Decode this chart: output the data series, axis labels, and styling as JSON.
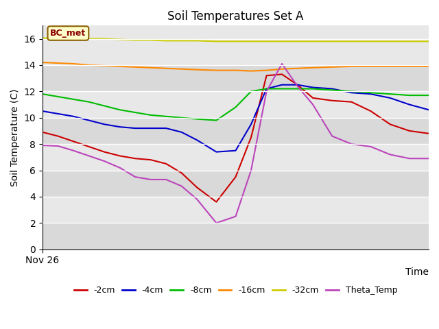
{
  "title": "Soil Temperatures Set A",
  "xlabel": "Time",
  "ylabel": "Soil Temperature (C)",
  "ylim": [
    0,
    17
  ],
  "yticks": [
    0,
    2,
    4,
    6,
    8,
    10,
    12,
    14,
    16
  ],
  "x_label_text": "Nov 26",
  "annotation_text": "BC_met",
  "background_color": "#ffffff",
  "plot_bg_color": "#e8e8e8",
  "band_color": "#d8d8d8",
  "series": {
    "neg2cm": {
      "color": "#cc0000",
      "label": "-2cm",
      "x": [
        0,
        4,
        8,
        12,
        16,
        20,
        24,
        28,
        32,
        36,
        40,
        45,
        50,
        54,
        58,
        62,
        66,
        70,
        75,
        80,
        85,
        90,
        95,
        100
      ],
      "y": [
        8.9,
        8.6,
        8.2,
        7.8,
        7.4,
        7.1,
        6.9,
        6.8,
        6.5,
        5.8,
        4.7,
        3.6,
        5.5,
        8.5,
        13.2,
        13.3,
        12.5,
        11.5,
        11.3,
        11.2,
        10.5,
        9.5,
        9.0,
        8.8
      ]
    },
    "neg4cm": {
      "color": "#0000cc",
      "label": "-4cm",
      "x": [
        0,
        4,
        8,
        12,
        16,
        20,
        24,
        28,
        32,
        36,
        40,
        45,
        50,
        54,
        58,
        62,
        66,
        70,
        75,
        80,
        85,
        90,
        95,
        100
      ],
      "y": [
        10.5,
        10.3,
        10.1,
        9.8,
        9.5,
        9.3,
        9.2,
        9.2,
        9.2,
        8.9,
        8.3,
        7.4,
        7.5,
        9.5,
        12.2,
        12.5,
        12.5,
        12.3,
        12.2,
        11.9,
        11.8,
        11.5,
        11.0,
        10.6
      ]
    },
    "neg8cm": {
      "color": "#00bb00",
      "label": "-8cm",
      "x": [
        0,
        4,
        8,
        12,
        16,
        20,
        24,
        28,
        32,
        36,
        40,
        45,
        50,
        54,
        58,
        62,
        66,
        70,
        75,
        80,
        85,
        90,
        95,
        100
      ],
      "y": [
        11.8,
        11.6,
        11.4,
        11.2,
        10.9,
        10.6,
        10.4,
        10.2,
        10.1,
        10.0,
        9.9,
        9.8,
        10.8,
        12.0,
        12.2,
        12.2,
        12.2,
        12.2,
        12.1,
        12.0,
        11.9,
        11.8,
        11.7,
        11.7
      ]
    },
    "neg16cm": {
      "color": "#ff8800",
      "label": "-16cm",
      "x": [
        0,
        4,
        8,
        12,
        16,
        20,
        24,
        28,
        32,
        36,
        40,
        45,
        50,
        54,
        58,
        62,
        66,
        70,
        75,
        80,
        85,
        90,
        95,
        100
      ],
      "y": [
        14.2,
        14.15,
        14.1,
        14.0,
        13.95,
        13.9,
        13.85,
        13.8,
        13.75,
        13.7,
        13.65,
        13.6,
        13.6,
        13.55,
        13.6,
        13.7,
        13.75,
        13.8,
        13.85,
        13.9,
        13.9,
        13.9,
        13.9,
        13.9
      ]
    },
    "neg32cm": {
      "color": "#cccc00",
      "label": "-32cm",
      "x": [
        0,
        4,
        8,
        12,
        16,
        20,
        24,
        28,
        32,
        36,
        40,
        45,
        50,
        54,
        58,
        62,
        66,
        70,
        75,
        80,
        85,
        90,
        95,
        100
      ],
      "y": [
        16.05,
        16.05,
        16.05,
        16.0,
        16.0,
        15.95,
        15.9,
        15.9,
        15.85,
        15.85,
        15.85,
        15.8,
        15.8,
        15.8,
        15.8,
        15.8,
        15.8,
        15.8,
        15.8,
        15.8,
        15.8,
        15.8,
        15.8,
        15.8
      ]
    },
    "theta": {
      "color": "#bb44bb",
      "label": "Theta_Temp",
      "x": [
        0,
        4,
        8,
        12,
        16,
        20,
        24,
        28,
        32,
        36,
        40,
        45,
        50,
        54,
        58,
        62,
        66,
        70,
        75,
        80,
        85,
        90,
        95,
        100
      ],
      "y": [
        7.9,
        7.85,
        7.5,
        7.1,
        6.7,
        6.2,
        5.5,
        5.3,
        5.3,
        4.8,
        3.8,
        2.0,
        2.5,
        6.0,
        12.0,
        14.1,
        12.4,
        11.0,
        8.6,
        8.0,
        7.8,
        7.2,
        6.9,
        6.9
      ]
    }
  }
}
